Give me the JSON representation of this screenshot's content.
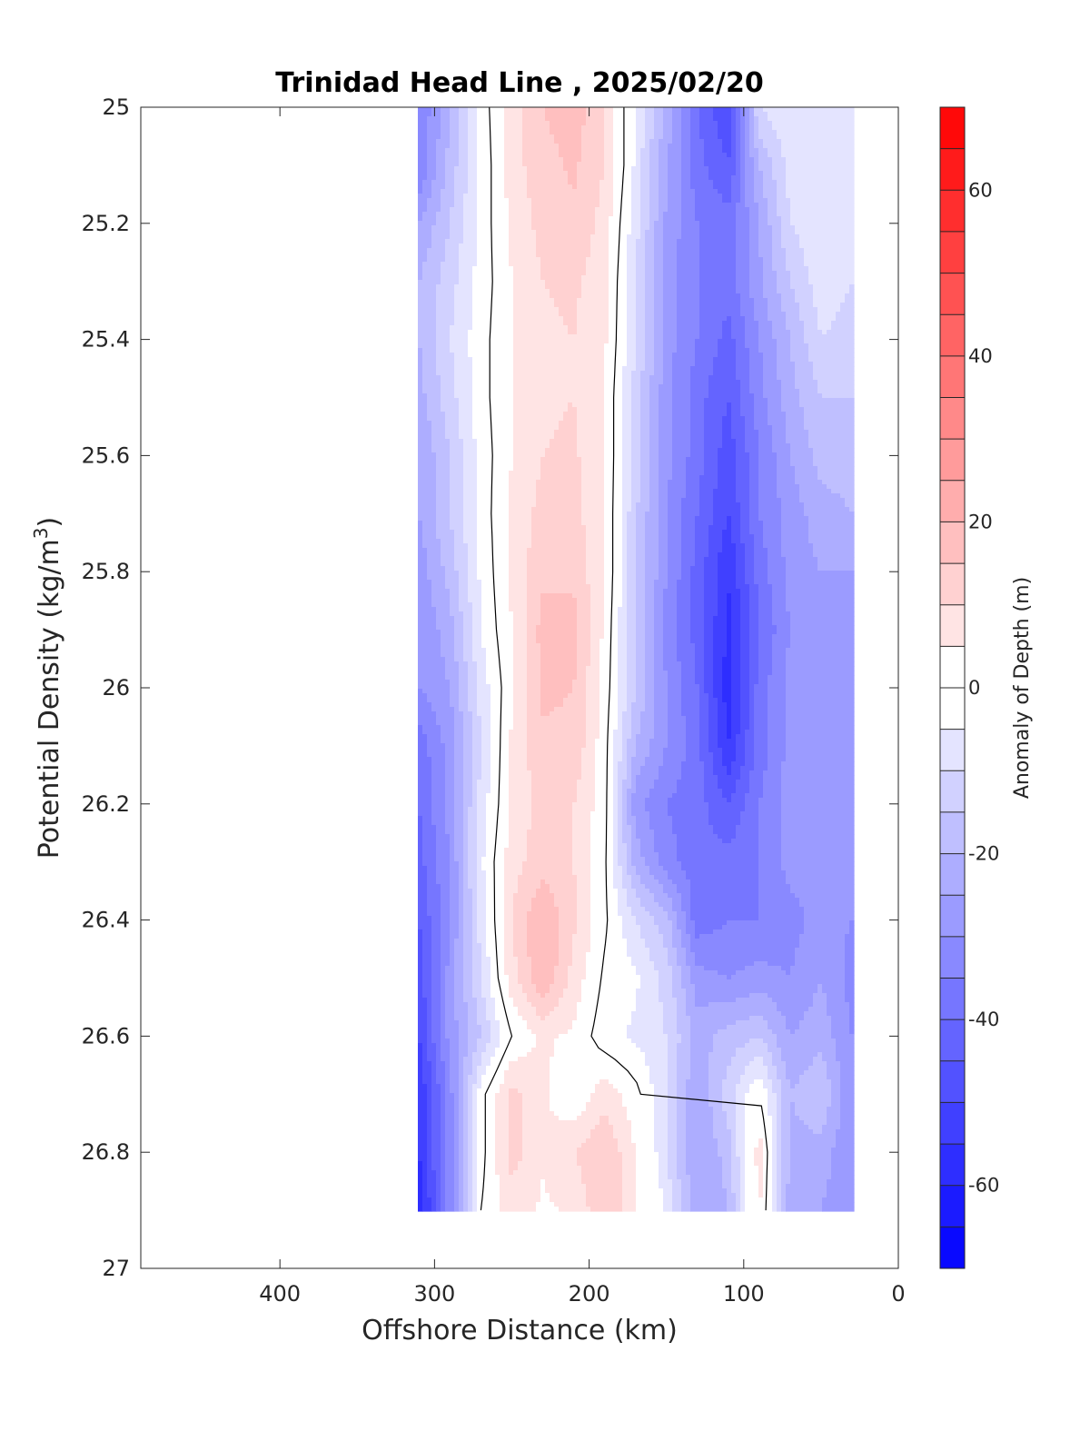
{
  "chart_data": {
    "type": "heatmap",
    "subtype": "filled-contour",
    "title": "Trinidad Head Line , 2025/02/20",
    "xlabel": "Offshore Distance (km)",
    "ylabel": "Potential Density (kg/m³)",
    "ylabel_parts": {
      "main": "Potential Density (kg/m",
      "sup": "3",
      "end": ")"
    },
    "xlim": [
      490,
      0
    ],
    "x_reversed": true,
    "ylim": [
      25,
      27
    ],
    "y_reversed": true,
    "xticks": [
      400,
      300,
      200,
      100,
      0
    ],
    "yticks": [
      25,
      25.2,
      25.4,
      25.6,
      25.8,
      26,
      26.2,
      26.4,
      26.6,
      26.8,
      27
    ],
    "colorbar": {
      "label": "Anomaly of Depth (m)",
      "range": [
        -70,
        70
      ],
      "step": 5,
      "ticks": [
        -60,
        -40,
        -20,
        0,
        20,
        40,
        60
      ],
      "colormap": "blue-white-red",
      "low_color": "#0000ff",
      "mid_color": "#ffffff",
      "high_color": "#ff0000"
    },
    "data_extent": {
      "x": [
        20,
        310
      ],
      "y": [
        25,
        26.9
      ]
    },
    "z_grid": {
      "x": [
        310,
        290,
        270,
        250,
        230,
        210,
        190,
        170,
        150,
        130,
        110,
        90,
        70,
        50,
        30
      ],
      "y": [
        25.0,
        25.1,
        25.2,
        25.3,
        25.4,
        25.5,
        25.6,
        25.7,
        25.8,
        25.9,
        26.0,
        26.1,
        26.2,
        26.3,
        26.4,
        26.5,
        26.6,
        26.7,
        26.8,
        26.9
      ],
      "z": [
        [
          -35,
          -20,
          -3,
          8,
          15,
          18,
          10,
          -6,
          -22,
          -40,
          -50,
          -10,
          -5,
          -8,
          -10
        ],
        [
          -35,
          -18,
          -4,
          8,
          13,
          16,
          10,
          -6,
          -24,
          -38,
          -45,
          -20,
          -8,
          -5,
          -10
        ],
        [
          -25,
          -15,
          -3,
          6,
          12,
          14,
          8,
          -8,
          -26,
          -35,
          -38,
          -25,
          -10,
          -6,
          -10
        ],
        [
          -20,
          -12,
          -3,
          5,
          10,
          11,
          7,
          -10,
          -28,
          -35,
          -38,
          -26,
          -15,
          -7,
          -10
        ],
        [
          -20,
          -10,
          -2,
          5,
          9,
          10,
          6,
          -10,
          -28,
          -35,
          -42,
          -30,
          -20,
          -10,
          -12
        ],
        [
          -22,
          -12,
          -2,
          5,
          9,
          10,
          5,
          -12,
          -28,
          -38,
          -45,
          -32,
          -22,
          -15,
          -15
        ],
        [
          -25,
          -15,
          -3,
          5,
          10,
          11,
          5,
          -12,
          -28,
          -38,
          -48,
          -35,
          -25,
          -18,
          -18
        ],
        [
          -25,
          -15,
          -3,
          6,
          12,
          12,
          5,
          -14,
          -30,
          -40,
          -50,
          -35,
          -28,
          -22,
          -20
        ],
        [
          -28,
          -18,
          -4,
          6,
          14,
          14,
          5,
          -14,
          -30,
          -42,
          -55,
          -38,
          -28,
          -25,
          -25
        ],
        [
          -30,
          -22,
          -5,
          5,
          17,
          17,
          4,
          -15,
          -32,
          -42,
          -56,
          -40,
          -30,
          -28,
          -25
        ],
        [
          -30,
          -25,
          -8,
          4,
          16,
          15,
          3,
          -15,
          -30,
          -40,
          -58,
          -38,
          -28,
          -28,
          -28
        ],
        [
          -38,
          -28,
          -10,
          6,
          14,
          14,
          2,
          -20,
          -30,
          -38,
          -55,
          -38,
          -28,
          -28,
          -30
        ],
        [
          -40,
          -28,
          -8,
          6,
          12,
          10,
          2,
          -28,
          -35,
          -38,
          -45,
          -35,
          -28,
          -28,
          -30
        ],
        [
          -42,
          -30,
          -6,
          8,
          13,
          10,
          1,
          -22,
          -33,
          -38,
          -38,
          -35,
          -28,
          -28,
          -30
        ],
        [
          -45,
          -30,
          -8,
          10,
          20,
          11,
          1,
          -10,
          -18,
          -38,
          -35,
          -35,
          -32,
          -28,
          -30
        ],
        [
          -48,
          -28,
          -10,
          8,
          20,
          8,
          -1,
          -4,
          -12,
          -28,
          -30,
          -28,
          -30,
          -25,
          -32
        ],
        [
          -50,
          -28,
          -15,
          0,
          6,
          4,
          -3,
          -6,
          -10,
          -22,
          -18,
          -15,
          -25,
          -22,
          -30
        ],
        [
          -55,
          -32,
          -2,
          12,
          6,
          0,
          8,
          2,
          -10,
          -25,
          -12,
          0,
          -20,
          -15,
          -30
        ],
        [
          -55,
          -32,
          -2,
          12,
          6,
          10,
          15,
          5,
          -10,
          -25,
          -18,
          8,
          -22,
          -22,
          -30
        ],
        [
          -60,
          -32,
          0,
          8,
          4,
          6,
          14,
          6,
          -6,
          -25,
          -20,
          6,
          -22,
          -25,
          -30
        ]
      ]
    }
  }
}
